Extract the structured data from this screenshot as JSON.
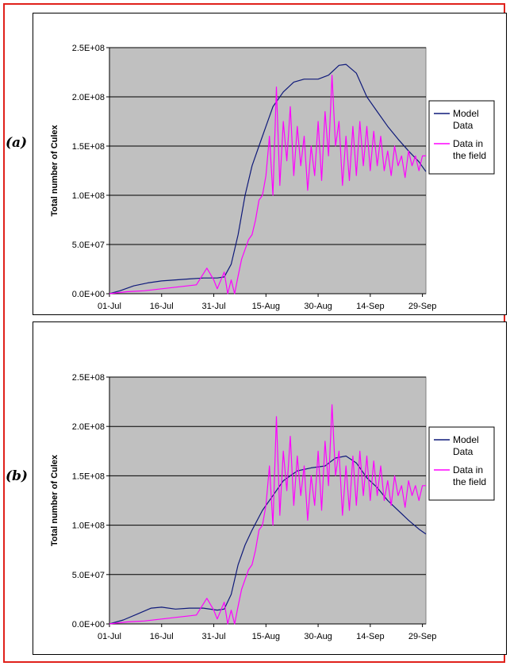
{
  "colors": {
    "plot_bg": "#c0c0c0",
    "grid": "#000000",
    "model": "#0f1a7a",
    "field": "#ff00ff",
    "frame": "#e0211b"
  },
  "panels": [
    {
      "tag": "(a)"
    },
    {
      "tag": "(b)"
    }
  ],
  "chart_data": [
    {
      "type": "line",
      "ylabel": "Total number of Culex",
      "xlabel": "",
      "x_range": [
        "2000-07-01",
        "2000-09-30"
      ],
      "x_ticks": [
        "01-Jul",
        "16-Jul",
        "31-Jul",
        "15-Aug",
        "30-Aug",
        "14-Sep",
        "29-Sep"
      ],
      "ylim": [
        0,
        250000000
      ],
      "y_ticks": [
        "0.0E+00",
        "5.0E+07",
        "1.0E+08",
        "1.5E+08",
        "2.0E+08",
        "2.5E+08"
      ],
      "grid": "horizontal",
      "legend_position": "right",
      "series": [
        {
          "name": "Model Data",
          "points": [
            [
              "2000-07-01",
              0
            ],
            [
              "2000-07-04",
              3000000
            ],
            [
              "2000-07-08",
              8000000
            ],
            [
              "2000-07-12",
              11000000
            ],
            [
              "2000-07-16",
              13000000
            ],
            [
              "2000-07-20",
              14000000
            ],
            [
              "2000-07-24",
              15000000
            ],
            [
              "2000-07-28",
              16000000
            ],
            [
              "2000-08-01",
              16000000
            ],
            [
              "2000-08-03",
              17000000
            ],
            [
              "2000-08-05",
              30000000
            ],
            [
              "2000-08-07",
              60000000
            ],
            [
              "2000-08-09",
              100000000
            ],
            [
              "2000-08-11",
              130000000
            ],
            [
              "2000-08-13",
              150000000
            ],
            [
              "2000-08-15",
              170000000
            ],
            [
              "2000-08-17",
              190000000
            ],
            [
              "2000-08-20",
              205000000
            ],
            [
              "2000-08-23",
              215000000
            ],
            [
              "2000-08-26",
              218000000
            ],
            [
              "2000-08-30",
              218000000
            ],
            [
              "2000-09-02",
              222000000
            ],
            [
              "2000-09-05",
              232000000
            ],
            [
              "2000-09-07",
              233000000
            ],
            [
              "2000-09-10",
              224000000
            ],
            [
              "2000-09-13",
              200000000
            ],
            [
              "2000-09-16",
              185000000
            ],
            [
              "2000-09-19",
              170000000
            ],
            [
              "2000-09-22",
              157000000
            ],
            [
              "2000-09-25",
              145000000
            ],
            [
              "2000-09-28",
              134000000
            ],
            [
              "2000-09-30",
              124000000
            ]
          ]
        },
        {
          "name": "Data in the field",
          "points": [
            [
              "2000-07-01",
              0
            ],
            [
              "2000-07-06",
              2000000
            ],
            [
              "2000-07-11",
              3000000
            ],
            [
              "2000-07-16",
              5000000
            ],
            [
              "2000-07-21",
              7000000
            ],
            [
              "2000-07-26",
              9000000
            ],
            [
              "2000-07-29",
              26000000
            ],
            [
              "2000-07-31",
              14000000
            ],
            [
              "2000-08-01",
              5000000
            ],
            [
              "2000-08-03",
              22000000
            ],
            [
              "2000-08-04",
              0
            ],
            [
              "2000-08-05",
              14000000
            ],
            [
              "2000-08-06",
              0
            ],
            [
              "2000-08-07",
              18000000
            ],
            [
              "2000-08-08",
              35000000
            ],
            [
              "2000-08-09",
              45000000
            ],
            [
              "2000-08-10",
              55000000
            ],
            [
              "2000-08-11",
              60000000
            ],
            [
              "2000-08-12",
              75000000
            ],
            [
              "2000-08-13",
              95000000
            ],
            [
              "2000-08-14",
              100000000
            ],
            [
              "2000-08-15",
              120000000
            ],
            [
              "2000-08-16",
              160000000
            ],
            [
              "2000-08-17",
              100000000
            ],
            [
              "2000-08-18",
              210000000
            ],
            [
              "2000-08-19",
              110000000
            ],
            [
              "2000-08-20",
              175000000
            ],
            [
              "2000-08-21",
              135000000
            ],
            [
              "2000-08-22",
              190000000
            ],
            [
              "2000-08-23",
              120000000
            ],
            [
              "2000-08-24",
              170000000
            ],
            [
              "2000-08-25",
              130000000
            ],
            [
              "2000-08-26",
              160000000
            ],
            [
              "2000-08-27",
              105000000
            ],
            [
              "2000-08-28",
              150000000
            ],
            [
              "2000-08-29",
              120000000
            ],
            [
              "2000-08-30",
              175000000
            ],
            [
              "2000-08-31",
              115000000
            ],
            [
              "2000-09-01",
              185000000
            ],
            [
              "2000-09-02",
              140000000
            ],
            [
              "2000-09-03",
              222000000
            ],
            [
              "2000-09-04",
              150000000
            ],
            [
              "2000-09-05",
              175000000
            ],
            [
              "2000-09-06",
              110000000
            ],
            [
              "2000-09-07",
              160000000
            ],
            [
              "2000-09-08",
              115000000
            ],
            [
              "2000-09-09",
              170000000
            ],
            [
              "2000-09-10",
              120000000
            ],
            [
              "2000-09-11",
              175000000
            ],
            [
              "2000-09-12",
              130000000
            ],
            [
              "2000-09-13",
              170000000
            ],
            [
              "2000-09-14",
              125000000
            ],
            [
              "2000-09-15",
              165000000
            ],
            [
              "2000-09-16",
              130000000
            ],
            [
              "2000-09-17",
              160000000
            ],
            [
              "2000-09-18",
              125000000
            ],
            [
              "2000-09-19",
              145000000
            ],
            [
              "2000-09-20",
              120000000
            ],
            [
              "2000-09-21",
              150000000
            ],
            [
              "2000-09-22",
              130000000
            ],
            [
              "2000-09-23",
              140000000
            ],
            [
              "2000-09-24",
              118000000
            ],
            [
              "2000-09-25",
              145000000
            ],
            [
              "2000-09-26",
              130000000
            ],
            [
              "2000-09-27",
              140000000
            ],
            [
              "2000-09-28",
              125000000
            ],
            [
              "2000-09-29",
              140000000
            ],
            [
              "2000-09-30",
              140000000
            ]
          ]
        }
      ]
    },
    {
      "type": "line",
      "ylabel": "Total number of Culex",
      "xlabel": "",
      "x_range": [
        "2000-07-01",
        "2000-09-30"
      ],
      "x_ticks": [
        "01-Jul",
        "16-Jul",
        "31-Jul",
        "15-Aug",
        "30-Aug",
        "14-Sep",
        "29-Sep"
      ],
      "ylim": [
        0,
        250000000
      ],
      "y_ticks": [
        "0.0E+00",
        "5.0E+07",
        "1.0E+08",
        "1.5E+08",
        "2.0E+08",
        "2.5E+08"
      ],
      "grid": "horizontal",
      "legend_position": "right",
      "series": [
        {
          "name": "Model Data",
          "points": [
            [
              "2000-07-01",
              0
            ],
            [
              "2000-07-05",
              4000000
            ],
            [
              "2000-07-09",
              10000000
            ],
            [
              "2000-07-13",
              16000000
            ],
            [
              "2000-07-16",
              17000000
            ],
            [
              "2000-07-20",
              15000000
            ],
            [
              "2000-07-24",
              16000000
            ],
            [
              "2000-07-28",
              16000000
            ],
            [
              "2000-08-01",
              14000000
            ],
            [
              "2000-08-03",
              15000000
            ],
            [
              "2000-08-05",
              30000000
            ],
            [
              "2000-08-07",
              60000000
            ],
            [
              "2000-08-09",
              80000000
            ],
            [
              "2000-08-11",
              95000000
            ],
            [
              "2000-08-14",
              115000000
            ],
            [
              "2000-08-17",
              130000000
            ],
            [
              "2000-08-20",
              145000000
            ],
            [
              "2000-08-24",
              155000000
            ],
            [
              "2000-08-28",
              158000000
            ],
            [
              "2000-09-01",
              160000000
            ],
            [
              "2000-09-04",
              168000000
            ],
            [
              "2000-09-07",
              170000000
            ],
            [
              "2000-09-10",
              163000000
            ],
            [
              "2000-09-13",
              148000000
            ],
            [
              "2000-09-16",
              138000000
            ],
            [
              "2000-09-19",
              125000000
            ],
            [
              "2000-09-22",
              115000000
            ],
            [
              "2000-09-25",
              105000000
            ],
            [
              "2000-09-28",
              96000000
            ],
            [
              "2000-09-30",
              91000000
            ]
          ]
        },
        {
          "name": "Data in the field",
          "points": [
            [
              "2000-07-01",
              0
            ],
            [
              "2000-07-06",
              2000000
            ],
            [
              "2000-07-11",
              3000000
            ],
            [
              "2000-07-16",
              5000000
            ],
            [
              "2000-07-21",
              7000000
            ],
            [
              "2000-07-26",
              9000000
            ],
            [
              "2000-07-29",
              26000000
            ],
            [
              "2000-07-31",
              14000000
            ],
            [
              "2000-08-01",
              5000000
            ],
            [
              "2000-08-03",
              22000000
            ],
            [
              "2000-08-04",
              0
            ],
            [
              "2000-08-05",
              14000000
            ],
            [
              "2000-08-06",
              0
            ],
            [
              "2000-08-07",
              18000000
            ],
            [
              "2000-08-08",
              35000000
            ],
            [
              "2000-08-09",
              45000000
            ],
            [
              "2000-08-10",
              55000000
            ],
            [
              "2000-08-11",
              60000000
            ],
            [
              "2000-08-12",
              75000000
            ],
            [
              "2000-08-13",
              95000000
            ],
            [
              "2000-08-14",
              100000000
            ],
            [
              "2000-08-15",
              120000000
            ],
            [
              "2000-08-16",
              160000000
            ],
            [
              "2000-08-17",
              100000000
            ],
            [
              "2000-08-18",
              210000000
            ],
            [
              "2000-08-19",
              110000000
            ],
            [
              "2000-08-20",
              175000000
            ],
            [
              "2000-08-21",
              135000000
            ],
            [
              "2000-08-22",
              190000000
            ],
            [
              "2000-08-23",
              120000000
            ],
            [
              "2000-08-24",
              170000000
            ],
            [
              "2000-08-25",
              130000000
            ],
            [
              "2000-08-26",
              160000000
            ],
            [
              "2000-08-27",
              105000000
            ],
            [
              "2000-08-28",
              150000000
            ],
            [
              "2000-08-29",
              120000000
            ],
            [
              "2000-08-30",
              175000000
            ],
            [
              "2000-08-31",
              115000000
            ],
            [
              "2000-09-01",
              185000000
            ],
            [
              "2000-09-02",
              140000000
            ],
            [
              "2000-09-03",
              222000000
            ],
            [
              "2000-09-04",
              150000000
            ],
            [
              "2000-09-05",
              175000000
            ],
            [
              "2000-09-06",
              110000000
            ],
            [
              "2000-09-07",
              160000000
            ],
            [
              "2000-09-08",
              115000000
            ],
            [
              "2000-09-09",
              170000000
            ],
            [
              "2000-09-10",
              120000000
            ],
            [
              "2000-09-11",
              175000000
            ],
            [
              "2000-09-12",
              130000000
            ],
            [
              "2000-09-13",
              170000000
            ],
            [
              "2000-09-14",
              125000000
            ],
            [
              "2000-09-15",
              165000000
            ],
            [
              "2000-09-16",
              130000000
            ],
            [
              "2000-09-17",
              160000000
            ],
            [
              "2000-09-18",
              125000000
            ],
            [
              "2000-09-19",
              145000000
            ],
            [
              "2000-09-20",
              120000000
            ],
            [
              "2000-09-21",
              150000000
            ],
            [
              "2000-09-22",
              130000000
            ],
            [
              "2000-09-23",
              140000000
            ],
            [
              "2000-09-24",
              118000000
            ],
            [
              "2000-09-25",
              145000000
            ],
            [
              "2000-09-26",
              130000000
            ],
            [
              "2000-09-27",
              140000000
            ],
            [
              "2000-09-28",
              125000000
            ],
            [
              "2000-09-29",
              140000000
            ],
            [
              "2000-09-30",
              140000000
            ]
          ]
        }
      ]
    }
  ]
}
